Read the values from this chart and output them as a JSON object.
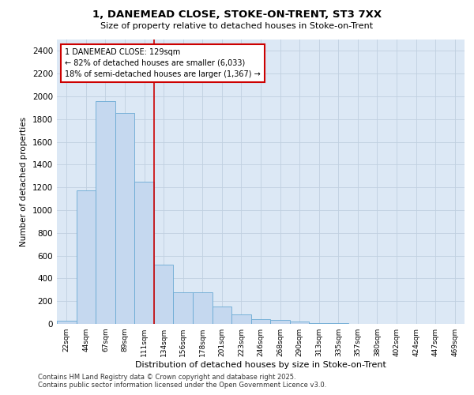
{
  "title_line1": "1, DANEMEAD CLOSE, STOKE-ON-TRENT, ST3 7XX",
  "title_line2": "Size of property relative to detached houses in Stoke-on-Trent",
  "xlabel": "Distribution of detached houses by size in Stoke-on-Trent",
  "ylabel": "Number of detached properties",
  "categories": [
    "22sqm",
    "44sqm",
    "67sqm",
    "89sqm",
    "111sqm",
    "134sqm",
    "156sqm",
    "178sqm",
    "201sqm",
    "223sqm",
    "246sqm",
    "268sqm",
    "290sqm",
    "313sqm",
    "335sqm",
    "357sqm",
    "380sqm",
    "402sqm",
    "424sqm",
    "447sqm",
    "469sqm"
  ],
  "values": [
    25,
    1175,
    1960,
    1855,
    1250,
    520,
    275,
    275,
    155,
    85,
    45,
    35,
    20,
    10,
    5,
    3,
    2,
    1,
    1,
    1,
    1
  ],
  "bar_color": "#c5d8ef",
  "bar_edge_color": "#6aaad4",
  "vline_index": 5,
  "marker_label_line1": "1 DANEMEAD CLOSE: 129sqm",
  "marker_label_line2": "← 82% of detached houses are smaller (6,033)",
  "marker_label_line3": "18% of semi-detached houses are larger (1,367) →",
  "annotation_box_facecolor": "#ffffff",
  "annotation_box_edgecolor": "#cc0000",
  "vline_color": "#cc0000",
  "ylim": [
    0,
    2500
  ],
  "yticks": [
    0,
    200,
    400,
    600,
    800,
    1000,
    1200,
    1400,
    1600,
    1800,
    2000,
    2200,
    2400
  ],
  "grid_color": "#c0d0e0",
  "background_color": "#dce8f5",
  "footer_line1": "Contains HM Land Registry data © Crown copyright and database right 2025.",
  "footer_line2": "Contains public sector information licensed under the Open Government Licence v3.0."
}
